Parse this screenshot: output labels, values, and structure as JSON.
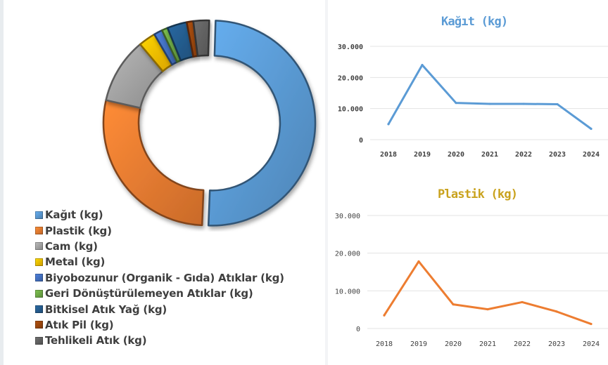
{
  "legend": [
    {
      "label": "Kağıt (kg)",
      "color": "#5b9bd5"
    },
    {
      "label": "Plastik (kg)",
      "color": "#ed7d31"
    },
    {
      "label": "Cam (kg)",
      "color": "#a5a5a5"
    },
    {
      "label": "Metal (kg)",
      "color": "#ffc000"
    },
    {
      "label": "Biyobozunur (Organik - Gıda) Atıklar (kg)",
      "color": "#4472c4"
    },
    {
      "label": "Geri Dönüştürülemeyen  Atıklar (kg)",
      "color": "#70ad47"
    },
    {
      "label": "Bitkisel Atık Yağ (kg)",
      "color": "#255e91"
    },
    {
      "label": "Atık Pil (kg)",
      "color": "#9e480e"
    },
    {
      "label": "Tehlikeli Atık (kg)",
      "color": "#636363"
    }
  ],
  "chart_data": [
    {
      "type": "pie",
      "categories": [
        "Kağıt (kg)",
        "Plastik (kg)",
        "Cam (kg)",
        "Metal (kg)",
        "Biyobozunur (Organik - Gıda) Atıklar (kg)",
        "Geri Dönüştürülemeyen  Atıklar (kg)",
        "Bitkisel Atık Yağ (kg)",
        "Atık Pil (kg)",
        "Tehlikeli Atık (kg)"
      ],
      "values": [
        48.5,
        27.0,
        10.0,
        2.6,
        1.3,
        0.9,
        3.0,
        1.0,
        2.4
      ],
      "colors": [
        "#5b9bd5",
        "#ed7d31",
        "#a5a5a5",
        "#ffc000",
        "#4472c4",
        "#70ad47",
        "#255e91",
        "#9e480e",
        "#636363"
      ],
      "donut": true,
      "exploded": [
        "Kağıt (kg)"
      ],
      "legend": "bottom-left"
    },
    {
      "type": "line",
      "title": "Kağıt (kg)",
      "x": [
        "2018",
        "2019",
        "2020",
        "2021",
        "2022",
        "2023",
        "2024"
      ],
      "series": [
        {
          "values": [
            5000,
            24000,
            11800,
            11500,
            11500,
            11400,
            3500
          ],
          "color": "#5b9bd5"
        }
      ],
      "ylim": [
        0,
        30000
      ],
      "yticks": [
        "0",
        "10.000",
        "20.000",
        "30.000"
      ],
      "grid": true,
      "title_color": "#5b9bd5"
    },
    {
      "type": "line",
      "title": "Plastik (kg)",
      "x": [
        "2018",
        "2019",
        "2020",
        "2021",
        "2022",
        "2023",
        "2024"
      ],
      "series": [
        {
          "values": [
            3500,
            17800,
            6400,
            5100,
            7000,
            4500,
            1200
          ],
          "color": "#ed7d31"
        }
      ],
      "ylim": [
        0,
        30000
      ],
      "yticks": [
        "0",
        "10.000",
        "20.000",
        "30.000"
      ],
      "grid": true,
      "title_color": "#c9a21d"
    }
  ]
}
